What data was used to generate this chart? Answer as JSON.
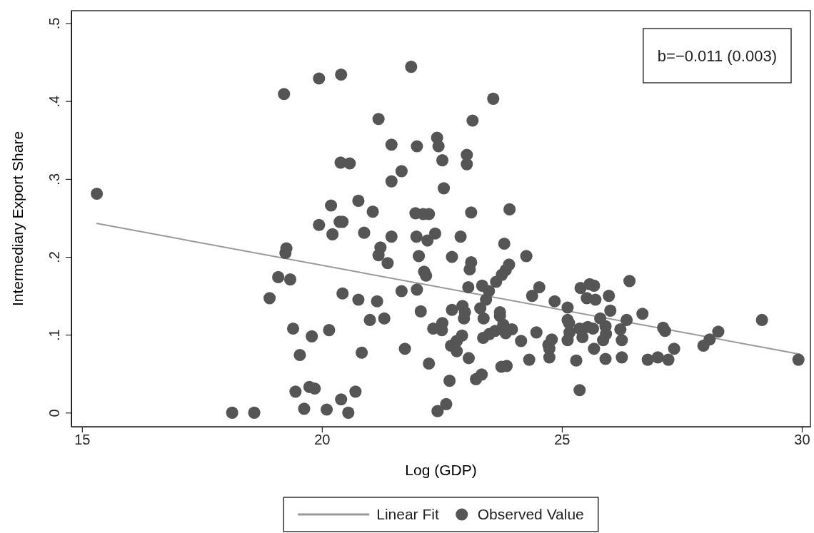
{
  "chart_data": {
    "type": "scatter",
    "xlabel": "Log (GDP)",
    "ylabel": "Intermediary Export Share",
    "xlim": [
      14.78,
      30.18
    ],
    "ylim": [
      -0.018,
      0.516
    ],
    "xticks": [
      15,
      20,
      25,
      30
    ],
    "yticks": [
      0,
      {
        "value": 0.1,
        "label": ".1"
      },
      {
        "value": 0.2,
        "label": ".2"
      },
      {
        "value": 0.3,
        "label": ".3"
      },
      {
        "value": 0.4,
        "label": ".4"
      },
      {
        "value": 0.5,
        "label": ".5"
      }
    ],
    "grid": false,
    "legend": "bottom",
    "marker": "circle",
    "annotations": [
      "b=−0.011 (0.003)"
    ],
    "series": [
      {
        "name": "Linear Fit",
        "type": "line",
        "color": "#999999",
        "line_style": "solid",
        "marker": "none",
        "x": [
          15.3,
          29.97
        ],
        "values": [
          0.243,
          0.075
        ]
      },
      {
        "name": "Observed Value",
        "color": "#555555",
        "x": [
          15.31,
          19.21,
          19.94,
          20.4,
          21.86,
          23.57,
          23.14,
          21.18,
          21.45,
          21.98,
          22.4,
          22.43,
          22.51,
          21.66,
          20.39,
          20.58,
          23.02,
          23.02,
          21.45,
          22.54,
          20.76,
          20.19,
          20.37,
          20.43,
          19.94,
          21.06,
          21.95,
          22.11,
          22.23,
          23.11,
          23.91,
          20.22,
          20.88,
          21.45,
          21.97,
          22.36,
          22.89,
          22.71,
          23.8,
          24.26,
          19.26,
          19.24,
          21.18,
          21.22,
          21.37,
          22.02,
          22.2,
          22.13,
          22.17,
          21.66,
          21.98,
          22.06,
          21.73,
          19.09,
          19.34,
          18.91,
          20.43,
          20.76,
          21.15,
          21.3,
          21.0,
          19.4,
          20.15,
          19.79,
          19.54,
          20.83,
          19.45,
          19.74,
          19.85,
          19.63,
          20.1,
          20.4,
          20.7,
          20.55,
          18.13,
          18.59,
          22.41,
          22.59,
          22.23,
          22.66,
          22.81,
          23.06,
          23.21,
          23.33,
          22.32,
          22.5,
          22.51,
          22.69,
          22.81,
          22.92,
          22.71,
          22.93,
          22.98,
          22.96,
          23.05,
          23.08,
          23.11,
          23.3,
          23.37,
          23.34,
          23.48,
          23.42,
          23.63,
          23.75,
          23.83,
          23.9,
          23.36,
          23.49,
          23.61,
          23.71,
          23.78,
          23.83,
          23.96,
          23.71,
          23.85,
          23.74,
          24.15,
          24.38,
          24.53,
          24.47,
          24.32,
          24.72,
          24.74,
          24.79,
          24.74,
          24.85,
          25.12,
          25.12,
          25.16,
          25.12,
          25.15,
          25.3,
          25.37,
          25.37,
          25.43,
          25.39,
          25.58,
          25.67,
          25.52,
          25.7,
          25.54,
          25.65,
          25.8,
          25.67,
          25.86,
          25.98,
          26.01,
          25.91,
          25.92,
          25.91,
          26.22,
          26.25,
          26.25,
          26.41,
          26.35,
          26.68,
          26.79,
          27.0,
          27.22,
          27.11,
          27.15,
          27.34,
          27.95,
          28.08,
          28.26,
          29.17,
          29.93
        ],
        "values": [
          0.281,
          0.409,
          0.429,
          0.434,
          0.444,
          0.403,
          0.375,
          0.377,
          0.344,
          0.342,
          0.353,
          0.342,
          0.324,
          0.31,
          0.321,
          0.32,
          0.331,
          0.319,
          0.297,
          0.288,
          0.272,
          0.266,
          0.245,
          0.245,
          0.241,
          0.258,
          0.256,
          0.255,
          0.255,
          0.257,
          0.261,
          0.229,
          0.231,
          0.226,
          0.226,
          0.23,
          0.226,
          0.2,
          0.217,
          0.201,
          0.211,
          0.205,
          0.202,
          0.212,
          0.192,
          0.201,
          0.221,
          0.181,
          0.176,
          0.156,
          0.158,
          0.13,
          0.082,
          0.174,
          0.171,
          0.147,
          0.153,
          0.145,
          0.143,
          0.121,
          0.119,
          0.108,
          0.106,
          0.098,
          0.074,
          0.077,
          0.027,
          0.033,
          0.031,
          0.005,
          0.004,
          0.017,
          0.027,
          0.0,
          0.0,
          0.0,
          0.002,
          0.011,
          0.063,
          0.041,
          0.079,
          0.07,
          0.043,
          0.049,
          0.108,
          0.106,
          0.115,
          0.086,
          0.092,
          0.099,
          0.132,
          0.137,
          0.129,
          0.121,
          0.161,
          0.184,
          0.193,
          0.134,
          0.121,
          0.163,
          0.156,
          0.145,
          0.168,
          0.177,
          0.183,
          0.19,
          0.096,
          0.101,
          0.105,
          0.124,
          0.113,
          0.102,
          0.107,
          0.129,
          0.06,
          0.059,
          0.092,
          0.15,
          0.161,
          0.103,
          0.068,
          0.087,
          0.082,
          0.094,
          0.071,
          0.143,
          0.135,
          0.119,
          0.103,
          0.093,
          0.115,
          0.067,
          0.029,
          0.108,
          0.097,
          0.16,
          0.165,
          0.163,
          0.147,
          0.145,
          0.11,
          0.108,
          0.121,
          0.082,
          0.093,
          0.15,
          0.131,
          0.111,
          0.101,
          0.069,
          0.107,
          0.093,
          0.071,
          0.169,
          0.119,
          0.127,
          0.068,
          0.071,
          0.068,
          0.109,
          0.105,
          0.082,
          0.086,
          0.094,
          0.104,
          0.119,
          0.068
        ]
      }
    ]
  }
}
